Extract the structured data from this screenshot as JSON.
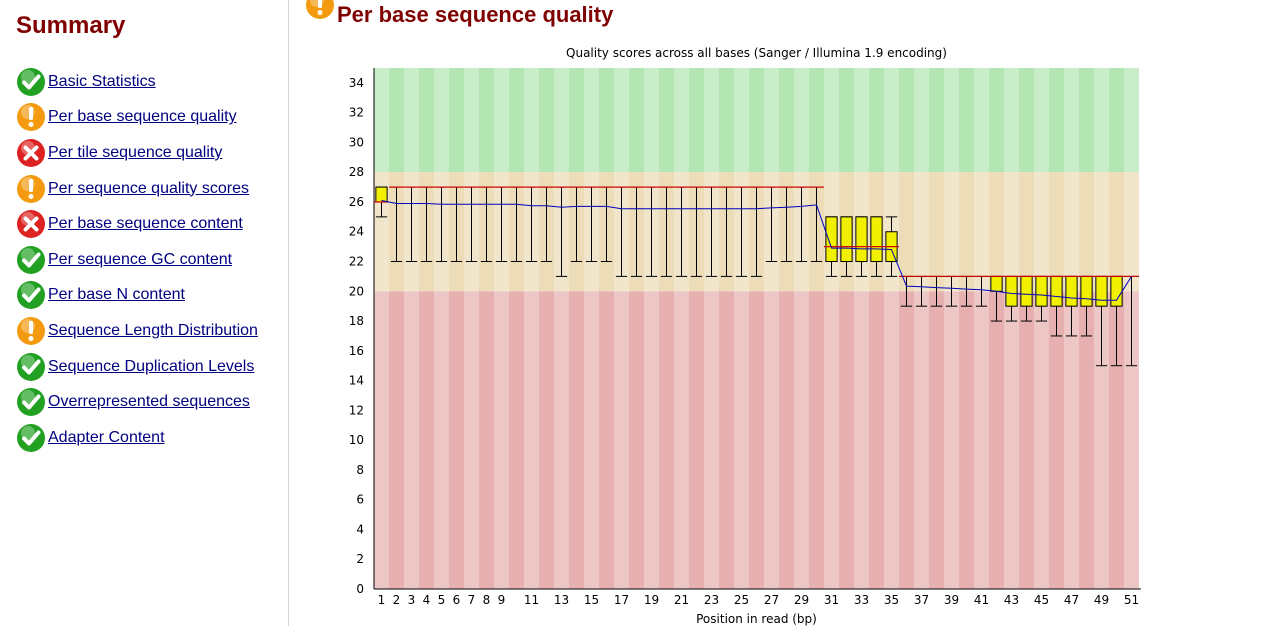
{
  "summary": {
    "title": "Summary",
    "items": [
      {
        "label": "Basic Statistics",
        "status": "pass"
      },
      {
        "label": "Per base sequence quality",
        "status": "warn"
      },
      {
        "label": "Per tile sequence quality",
        "status": "fail"
      },
      {
        "label": "Per sequence quality scores",
        "status": "warn"
      },
      {
        "label": "Per base sequence content",
        "status": "fail"
      },
      {
        "label": "Per sequence GC content",
        "status": "pass"
      },
      {
        "label": "Per base N content",
        "status": "pass"
      },
      {
        "label": "Sequence Length Distribution",
        "status": "warn"
      },
      {
        "label": "Sequence Duplication Levels",
        "status": "pass"
      },
      {
        "label": "Overrepresented sequences",
        "status": "pass"
      },
      {
        "label": "Adapter Content",
        "status": "pass"
      }
    ]
  },
  "module": {
    "title": "Per base sequence quality",
    "status": "warn"
  },
  "colors": {
    "pass": "#22a022",
    "warn": "#f39a0f",
    "fail": "#dd2222",
    "heading": "#800000",
    "link": "#000080",
    "zone_good": "#b4e6b4",
    "zone_ok": "#ecdcb8",
    "zone_poor": "#e6b0b0",
    "box_fill": "#f0f000",
    "mean_line": "#0000c0",
    "median_line": "#cc0000"
  },
  "icons": {
    "pass": "check-icon",
    "warn": "exclamation-icon",
    "fail": "cross-icon"
  },
  "chart_data": {
    "type": "box",
    "title": "Quality scores across all bases (Sanger / Illumina 1.9 encoding)",
    "xlabel": "Position in read (bp)",
    "ylabel": "",
    "ylim": [
      0,
      35
    ],
    "yticks": [
      0,
      2,
      4,
      6,
      8,
      10,
      12,
      14,
      16,
      18,
      20,
      22,
      24,
      26,
      28,
      30,
      32,
      34
    ],
    "xtick_labels": [
      "1",
      "2",
      "3",
      "4",
      "5",
      "6",
      "7",
      "8",
      "9",
      "11",
      "13",
      "15",
      "17",
      "19",
      "21",
      "23",
      "25",
      "27",
      "29",
      "31",
      "33",
      "35",
      "37",
      "39",
      "41",
      "43",
      "45",
      "47",
      "49",
      "51"
    ],
    "zones": [
      {
        "name": "good",
        "from": 28,
        "to": 35
      },
      {
        "name": "ok",
        "from": 20,
        "to": 28
      },
      {
        "name": "poor",
        "from": 0,
        "to": 20
      }
    ],
    "positions": [
      1,
      2,
      3,
      4,
      5,
      6,
      7,
      8,
      9,
      10,
      11,
      12,
      13,
      14,
      15,
      16,
      17,
      18,
      19,
      20,
      21,
      22,
      23,
      24,
      25,
      26,
      27,
      28,
      29,
      30,
      31,
      32,
      33,
      34,
      35,
      36,
      37,
      38,
      39,
      40,
      41,
      42,
      43,
      44,
      45,
      46,
      47,
      48,
      49,
      50,
      51
    ],
    "median": [
      26,
      27,
      27,
      27,
      27,
      27,
      27,
      27,
      27,
      27,
      27,
      27,
      27,
      27,
      27,
      27,
      27,
      27,
      27,
      27,
      27,
      27,
      27,
      27,
      27,
      27,
      27,
      27,
      27,
      27,
      23,
      23,
      23,
      23,
      23,
      21,
      21,
      21,
      21,
      21,
      21,
      21,
      21,
      21,
      21,
      21,
      21,
      21,
      21,
      21,
      21
    ],
    "q1": [
      26,
      27,
      27,
      27,
      27,
      27,
      27,
      27,
      27,
      27,
      27,
      27,
      27,
      27,
      27,
      27,
      27,
      27,
      27,
      27,
      27,
      27,
      27,
      27,
      27,
      27,
      27,
      27,
      27,
      27,
      22,
      22,
      22,
      22,
      22,
      21,
      21,
      21,
      21,
      21,
      21,
      20,
      19,
      19,
      19,
      19,
      19,
      19,
      19,
      19,
      21
    ],
    "q3": [
      27,
      27,
      27,
      27,
      27,
      27,
      27,
      27,
      27,
      27,
      27,
      27,
      27,
      27,
      27,
      27,
      27,
      27,
      27,
      27,
      27,
      27,
      27,
      27,
      27,
      27,
      27,
      27,
      27,
      27,
      25,
      25,
      25,
      25,
      24,
      21,
      21,
      21,
      21,
      21,
      21,
      21,
      21,
      21,
      21,
      21,
      21,
      21,
      21,
      21,
      21
    ],
    "lower_whisker": [
      25,
      22,
      22,
      22,
      22,
      22,
      22,
      22,
      22,
      22,
      22,
      22,
      21,
      22,
      22,
      22,
      21,
      21,
      21,
      21,
      21,
      21,
      21,
      21,
      21,
      21,
      22,
      22,
      22,
      22,
      21,
      21,
      21,
      21,
      21,
      19,
      19,
      19,
      19,
      19,
      19,
      18,
      18,
      18,
      18,
      17,
      17,
      17,
      15,
      15,
      15
    ],
    "upper_whisker": [
      27,
      27,
      27,
      27,
      27,
      27,
      27,
      27,
      27,
      27,
      27,
      27,
      27,
      27,
      27,
      27,
      27,
      27,
      27,
      27,
      27,
      27,
      27,
      27,
      27,
      27,
      27,
      27,
      27,
      27,
      25,
      25,
      25,
      25,
      25,
      21,
      21,
      21,
      21,
      21,
      21,
      21,
      21,
      21,
      21,
      21,
      21,
      21,
      21,
      21,
      21
    ],
    "mean": [
      26.1,
      25.9,
      25.9,
      25.9,
      25.85,
      25.85,
      25.85,
      25.85,
      25.85,
      25.85,
      25.75,
      25.75,
      25.65,
      25.7,
      25.7,
      25.7,
      25.55,
      25.55,
      25.55,
      25.55,
      25.55,
      25.55,
      25.55,
      25.55,
      25.55,
      25.55,
      25.6,
      25.65,
      25.7,
      25.8,
      22.9,
      22.9,
      22.85,
      22.85,
      22.8,
      20.35,
      20.3,
      20.25,
      20.2,
      20.15,
      20.1,
      20.0,
      19.85,
      19.8,
      19.75,
      19.65,
      19.55,
      19.5,
      19.4,
      19.4,
      21.0
    ]
  }
}
